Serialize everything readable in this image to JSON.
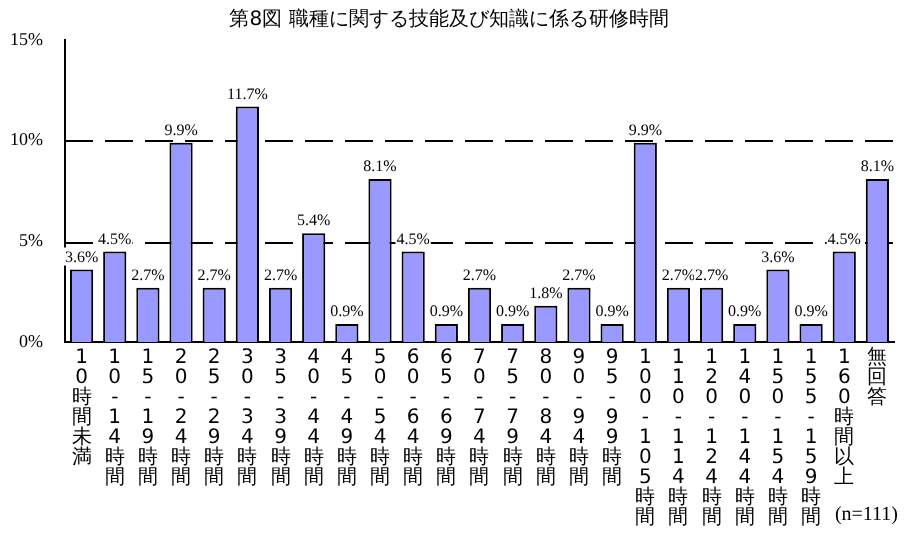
{
  "chart_data": {
    "type": "bar",
    "title": "第8図 職種に関する技能及び知識に係る研修時間",
    "categories": [
      "10時間未満",
      "10-14時間",
      "15-19時間",
      "20-24時間",
      "25-29時間",
      "30-34時間",
      "35-39時間",
      "40-44時間",
      "45-49時間",
      "50-54時間",
      "60-64時間",
      "65-69時間",
      "70-74時間",
      "75-79時間",
      "80-84時間",
      "90-94時間",
      "95-99時間",
      "100-105時間",
      "110-114時間",
      "120-124時間",
      "140-144時間",
      "150-154時間",
      "155-159時間",
      "160時間以上",
      "無回答"
    ],
    "values": [
      3.6,
      4.5,
      2.7,
      9.9,
      2.7,
      11.7,
      2.7,
      5.4,
      0.9,
      8.1,
      4.5,
      0.9,
      2.7,
      0.9,
      1.8,
      2.7,
      0.9,
      9.9,
      2.7,
      2.7,
      0.9,
      3.6,
      0.9,
      4.5,
      8.1
    ],
    "value_labels": [
      "3.6%",
      "4.5%",
      "2.7%",
      "9.9%",
      "2.7%",
      "11.7%",
      "2.7%",
      "5.4%",
      "0.9%",
      "8.1%",
      "4.5%",
      "0.9%",
      "2.7%",
      "0.9%",
      "1.8%",
      "2.7%",
      "0.9%",
      "9.9%",
      "2.7%",
      "2.7%",
      "0.9%",
      "3.6%",
      "0.9%",
      "4.5%",
      "8.1%"
    ],
    "color": "#9999ff",
    "ylim": [
      0,
      15
    ],
    "yticks": [
      {
        "value": 0,
        "label": "0%"
      },
      {
        "value": 5,
        "label": "5%"
      },
      {
        "value": 10,
        "label": "10%"
      },
      {
        "value": 15,
        "label": "15%"
      }
    ],
    "grid": "y",
    "legend": false,
    "annotations": [
      "(n=111)"
    ]
  }
}
